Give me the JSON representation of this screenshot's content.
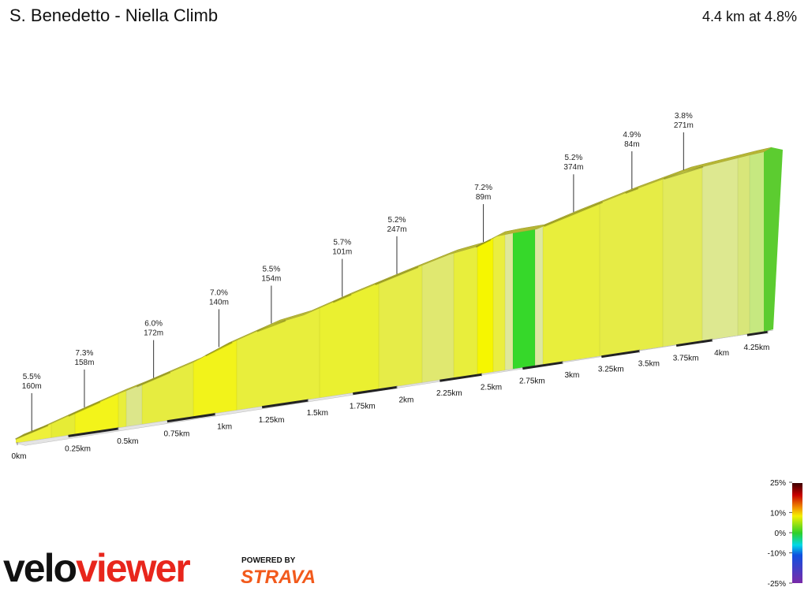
{
  "header": {
    "title": "S. Benedetto - Niella Climb",
    "summary": "4.4 km at 4.8%"
  },
  "chart_data": {
    "type": "climb-profile",
    "xlim": [
      0,
      4.4
    ],
    "xticks": [
      {
        "value": 0,
        "label": "0km"
      },
      {
        "value": 0.25,
        "label": "0.25km"
      },
      {
        "value": 0.5,
        "label": "0.5km"
      },
      {
        "value": 0.75,
        "label": "0.75km"
      },
      {
        "value": 1,
        "label": "1km"
      },
      {
        "value": 1.25,
        "label": "1.25km"
      },
      {
        "value": 1.5,
        "label": "1.5km"
      },
      {
        "value": 1.75,
        "label": "1.75km"
      },
      {
        "value": 2,
        "label": "2km"
      },
      {
        "value": 2.25,
        "label": "2.25km"
      },
      {
        "value": 2.5,
        "label": "2.5km"
      },
      {
        "value": 2.75,
        "label": "2.75km"
      },
      {
        "value": 3,
        "label": "3km"
      },
      {
        "value": 3.25,
        "label": "3.25km"
      },
      {
        "value": 3.5,
        "label": "3.5km"
      },
      {
        "value": 3.75,
        "label": "3.75km"
      },
      {
        "value": 4,
        "label": "4km"
      },
      {
        "value": 4.25,
        "label": "4.25km"
      }
    ],
    "x": [
      0.07,
      0.33,
      0.68,
      1.02,
      1.3,
      1.69,
      2.0,
      2.51,
      3.07,
      3.45,
      3.8
    ],
    "values": [
      5.5,
      7.3,
      6.0,
      7.0,
      5.5,
      5.7,
      5.2,
      7.2,
      5.2,
      4.9,
      3.8
    ],
    "value_labels": [
      "5.5%",
      "7.3%",
      "6.0%",
      "7.0%",
      "5.5%",
      "5.7%",
      "5.2%",
      "7.2%",
      "5.2%",
      "4.9%",
      "3.8%"
    ],
    "lengths": [
      160,
      158,
      172,
      140,
      154,
      101,
      247,
      89,
      374,
      84,
      271
    ],
    "length_labels": [
      "160m",
      "158m",
      "172m",
      "140m",
      "154m",
      "101m",
      "247m",
      "89m",
      "374m",
      "84m",
      "271m"
    ],
    "color_scale": {
      "ticks": [
        {
          "value": 25,
          "label": "25%"
        },
        {
          "value": 10,
          "label": "10%"
        },
        {
          "value": 0,
          "label": "0%"
        },
        {
          "value": -10,
          "label": "-10%"
        },
        {
          "value": -25,
          "label": "-25%"
        }
      ]
    }
  },
  "branding": {
    "logo_left": "velo",
    "logo_right": "viewer",
    "powered_by": "POWERED BY",
    "partner": "STRAVA"
  }
}
